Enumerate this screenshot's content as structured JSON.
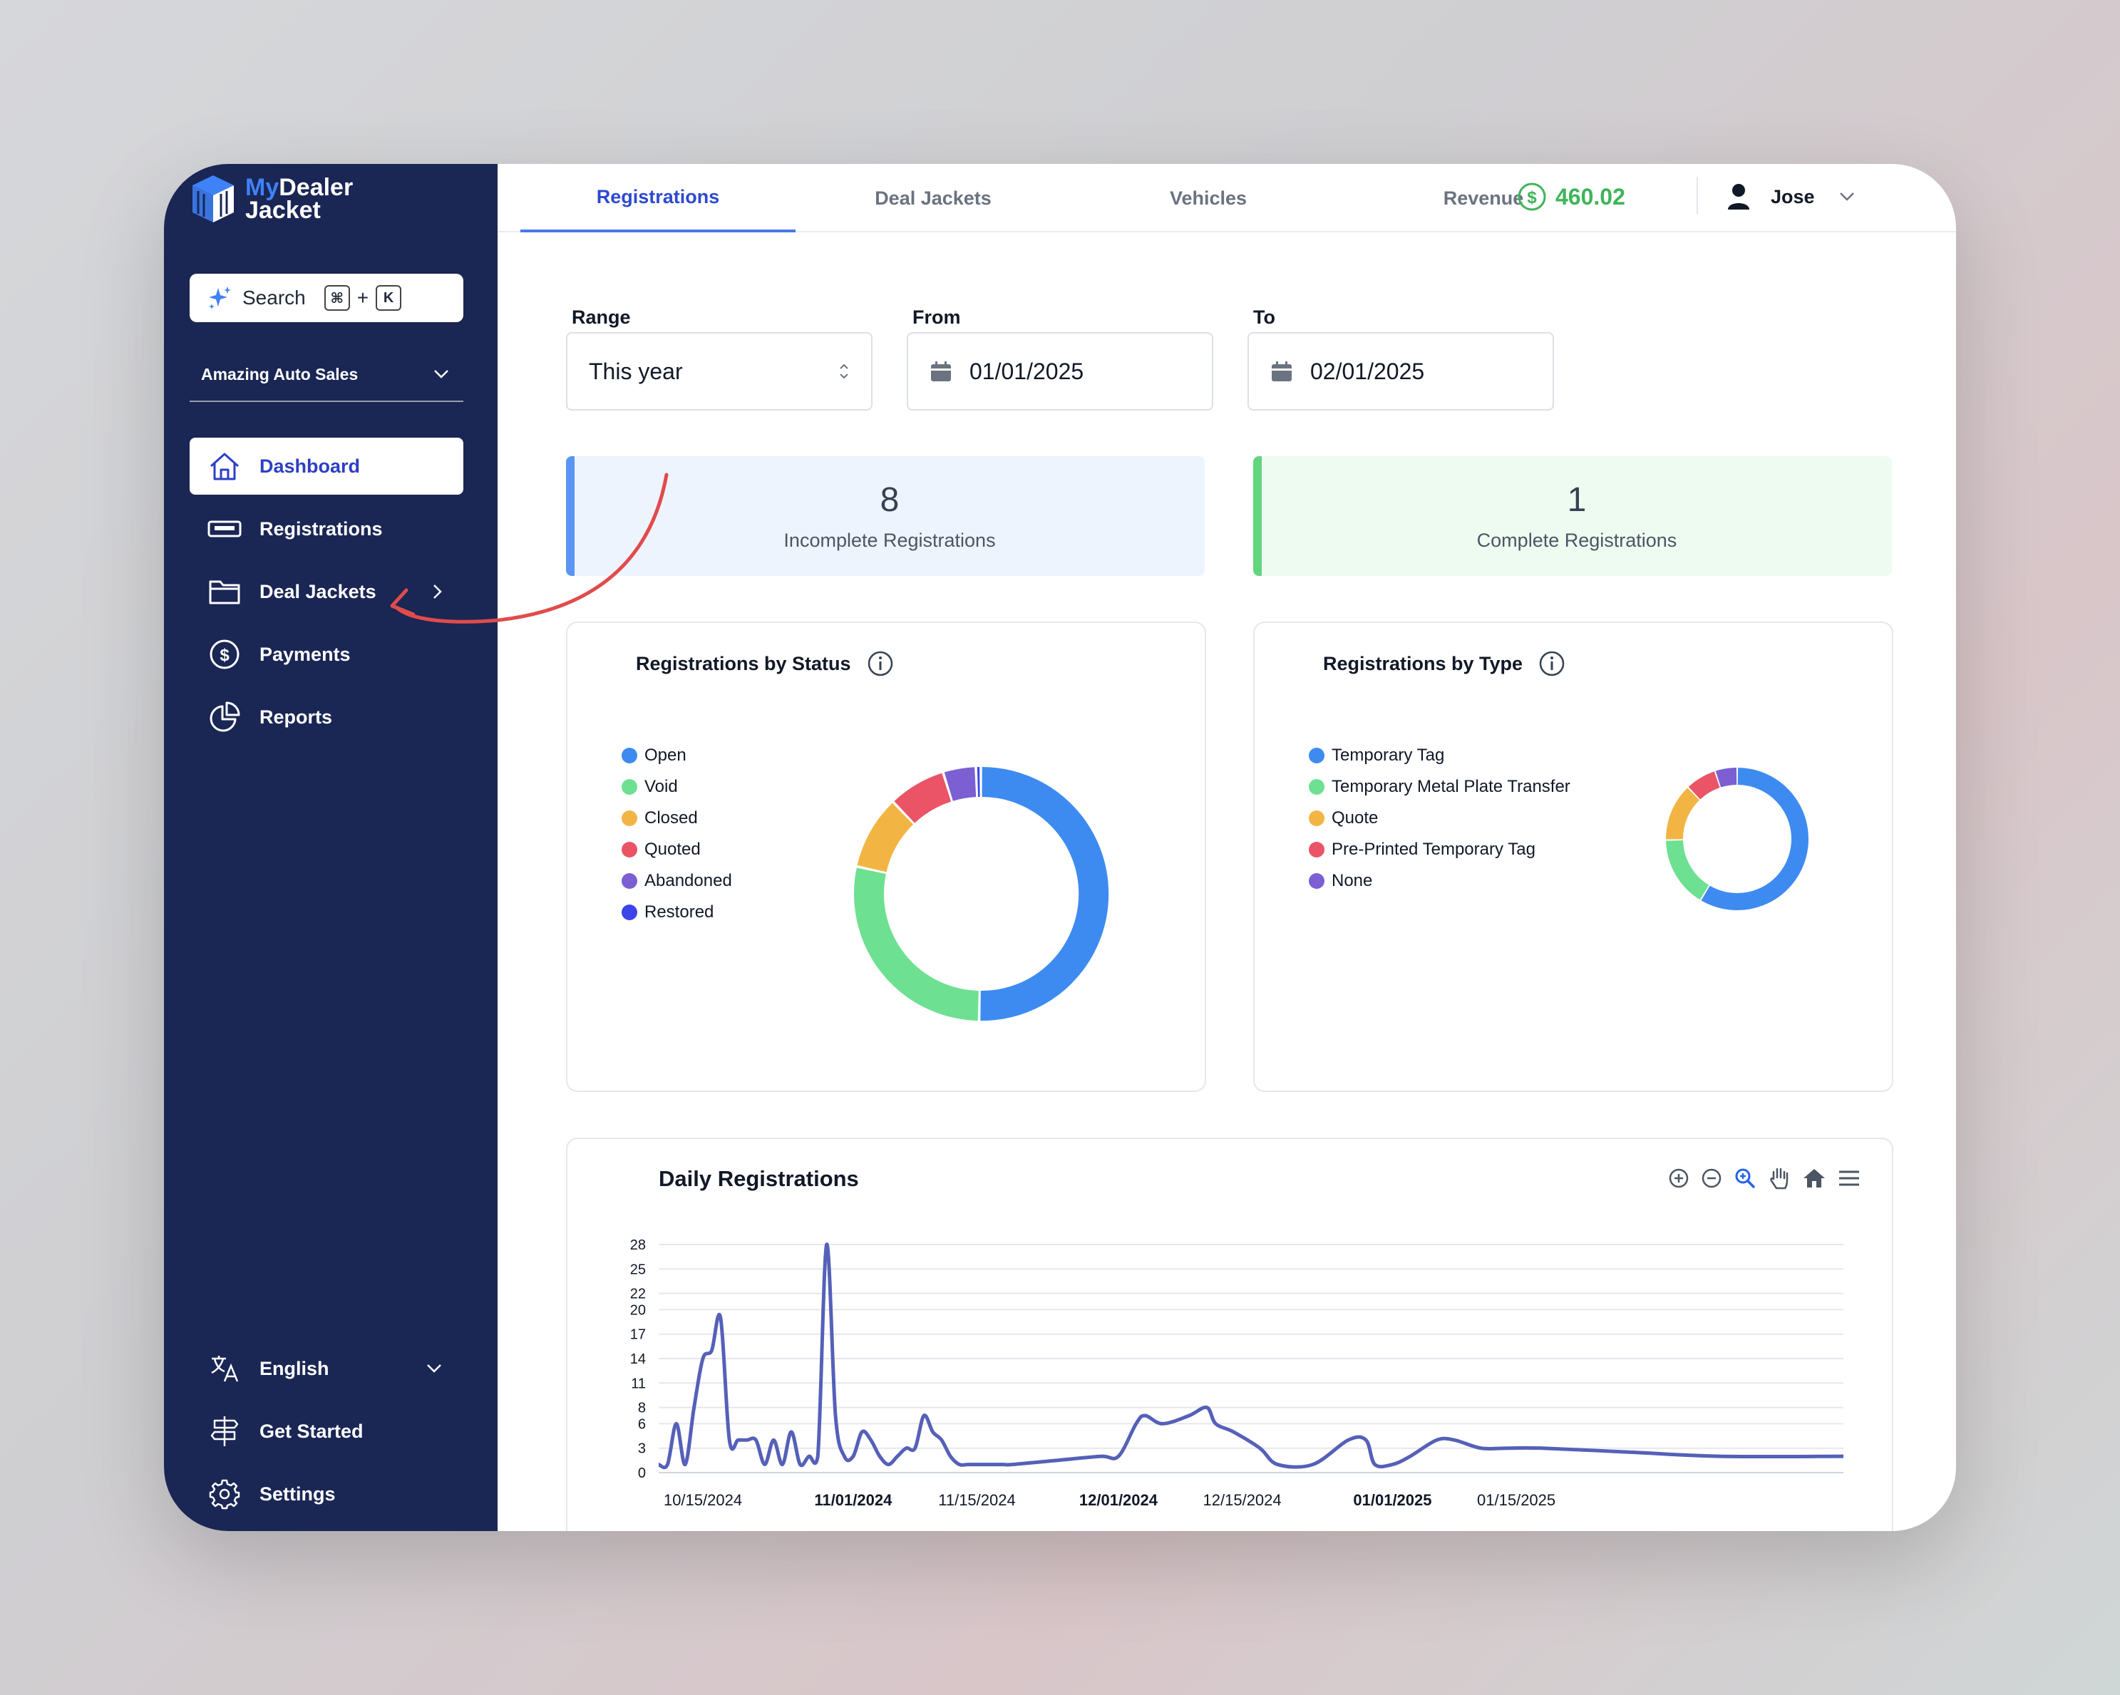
{
  "brand": {
    "name_part1": "My",
    "name_part2": "Dealer",
    "name_line2": "Jacket"
  },
  "search": {
    "label": "Search",
    "key1": "⌘",
    "plus": "+",
    "key2": "K"
  },
  "dealer": {
    "name": "Amazing Auto Sales"
  },
  "sidebar": {
    "items": [
      {
        "label": "Dashboard"
      },
      {
        "label": "Registrations"
      },
      {
        "label": "Deal Jackets"
      },
      {
        "label": "Payments"
      },
      {
        "label": "Reports"
      }
    ],
    "bottom": [
      {
        "label": "English"
      },
      {
        "label": "Get Started"
      },
      {
        "label": "Settings"
      }
    ]
  },
  "topnav": {
    "tabs": [
      {
        "label": "Registrations"
      },
      {
        "label": "Deal Jackets"
      },
      {
        "label": "Vehicles"
      },
      {
        "label": "Revenue"
      }
    ],
    "balance": "460.02",
    "user": "Jose"
  },
  "filters": {
    "range_label": "Range",
    "range_value": "This year",
    "from_label": "From",
    "from_value": "01/01/2025",
    "to_label": "To",
    "to_value": "02/01/2025"
  },
  "stats": {
    "incomplete": {
      "value": "8",
      "label": "Incomplete Registrations"
    },
    "complete": {
      "value": "1",
      "label": "Complete Registrations"
    }
  },
  "colors": {
    "blue": "#3d8bf0",
    "green": "#6ee091",
    "yellow": "#f2b544",
    "red": "#ea5466",
    "purple": "#7b5fd3",
    "indigo": "#3b44e8",
    "sidebar": "#1a2654",
    "line": "#5560b8",
    "accent": "#3fb45a"
  },
  "status_chart": {
    "title": "Registrations by Status",
    "legend": [
      {
        "label": "Open",
        "color": "#3d8bf0"
      },
      {
        "label": "Void",
        "color": "#6ee091"
      },
      {
        "label": "Closed",
        "color": "#f2b544"
      },
      {
        "label": "Quoted",
        "color": "#ea5466"
      },
      {
        "label": "Abandoned",
        "color": "#7b5fd3"
      },
      {
        "label": "Restored",
        "color": "#3b44e8"
      }
    ]
  },
  "type_chart": {
    "title": "Registrations by Type",
    "legend": [
      {
        "label": "Temporary Tag",
        "color": "#3d8bf0"
      },
      {
        "label": "Temporary Metal Plate Transfer",
        "color": "#6ee091"
      },
      {
        "label": "Quote",
        "color": "#f2b544"
      },
      {
        "label": "Pre-Printed Temporary Tag",
        "color": "#ea5466"
      },
      {
        "label": "None",
        "color": "#7b5fd3"
      }
    ]
  },
  "daily": {
    "title": "Daily Registrations"
  },
  "chart_data": [
    {
      "type": "pie",
      "title": "Registrations by Status",
      "categories": [
        "Open",
        "Void",
        "Closed",
        "Quoted",
        "Abandoned",
        "Restored"
      ],
      "values": [
        48,
        27,
        9,
        7,
        4,
        0.6
      ]
    },
    {
      "type": "pie",
      "title": "Registrations by Type",
      "categories": [
        "Temporary Tag",
        "Temporary Metal Plate Transfer",
        "Quote",
        "Pre-Printed Temporary Tag",
        "None"
      ],
      "values": [
        58,
        16,
        13,
        7,
        5
      ]
    },
    {
      "type": "line",
      "title": "Daily Registrations",
      "yticks": [
        "0",
        "3",
        "6",
        "8",
        "11",
        "14",
        "17",
        "20",
        "22",
        "25",
        "28"
      ],
      "ylim": [
        0,
        28
      ],
      "xlim": [
        0,
        134
      ],
      "xticks": [
        {
          "label": "10/15/2024",
          "x": 5,
          "bold": false
        },
        {
          "label": "11/01/2024",
          "x": 22,
          "bold": true
        },
        {
          "label": "11/15/2024",
          "x": 36,
          "bold": false
        },
        {
          "label": "12/01/2024",
          "x": 52,
          "bold": true
        },
        {
          "label": "12/15/2024",
          "x": 66,
          "bold": false
        },
        {
          "label": "01/01/2025",
          "x": 83,
          "bold": true
        },
        {
          "label": "01/15/2025",
          "x": 97,
          "bold": false
        }
      ],
      "x": [
        0,
        1,
        2,
        3,
        4,
        5,
        6,
        7,
        8,
        9,
        10,
        11,
        12,
        13,
        14,
        15,
        16,
        17,
        18,
        19,
        20,
        21,
        22,
        23,
        24,
        25,
        26,
        27,
        28,
        29,
        30,
        31,
        32,
        33,
        34,
        35,
        36,
        37,
        38,
        39,
        40,
        45,
        50,
        52,
        54,
        55,
        57,
        60,
        62,
        63,
        65,
        68,
        70,
        74,
        78,
        80,
        81,
        83,
        85,
        88,
        90,
        93,
        96,
        100,
        110,
        120,
        134
      ],
      "values": [
        1,
        1,
        6,
        1,
        8,
        14,
        15,
        19,
        4,
        4,
        4,
        4,
        1,
        4,
        1,
        5,
        1,
        2,
        2,
        28,
        7,
        2,
        2,
        5,
        4,
        2,
        1,
        2,
        3,
        3,
        7,
        5,
        4,
        2,
        1,
        1,
        1,
        1,
        1,
        1,
        1,
        1.5,
        2,
        2,
        6,
        7,
        6,
        7,
        8,
        6,
        5,
        3,
        1,
        1,
        4,
        4,
        1,
        1,
        2,
        4,
        4,
        3,
        3,
        3,
        2.5,
        2,
        2
      ]
    }
  ]
}
